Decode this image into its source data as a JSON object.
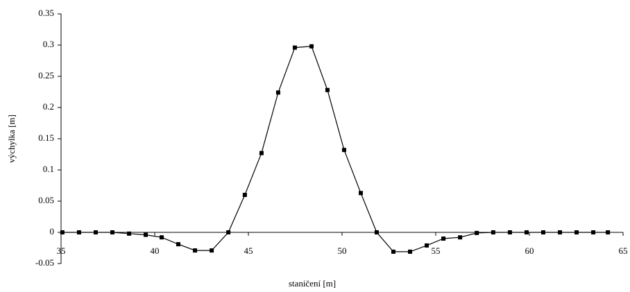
{
  "chart_data": {
    "type": "line",
    "x_label": "staničení [m]",
    "y_label": "výchylka [m]",
    "x": [
      35.07,
      35.96,
      36.85,
      37.74,
      38.63,
      39.52,
      40.37,
      41.26,
      42.15,
      43.04,
      43.93,
      44.81,
      45.7,
      46.59,
      47.48,
      48.37,
      49.22,
      50.11,
      51.0,
      51.85,
      52.74,
      53.63,
      54.52,
      55.41,
      56.3,
      57.19,
      58.07,
      58.96,
      59.85,
      60.74,
      61.63,
      62.52,
      63.41,
      64.19
    ],
    "series": [
      {
        "color": "#000000",
        "values": [
          0,
          0,
          0,
          0,
          -0.002,
          -0.004,
          -0.008,
          -0.019,
          -0.029,
          -0.029,
          0,
          0.06,
          0.127,
          0.224,
          0.296,
          0.298,
          0.228,
          0.132,
          0.063,
          0,
          -0.031,
          -0.031,
          -0.021,
          -0.01,
          -0.008,
          -0.001,
          0,
          0,
          0,
          0,
          0,
          0,
          0,
          0
        ]
      }
    ],
    "xlim": [
      35,
      65
    ],
    "xticks": [
      35,
      40,
      45,
      50,
      55,
      60,
      65
    ],
    "ylim": [
      -0.05,
      0.35
    ],
    "yticks": [
      -0.05,
      0,
      0.05,
      0.1,
      0.15,
      0.2,
      0.25,
      0.3,
      0.35
    ],
    "grid": false,
    "marker": "square"
  }
}
